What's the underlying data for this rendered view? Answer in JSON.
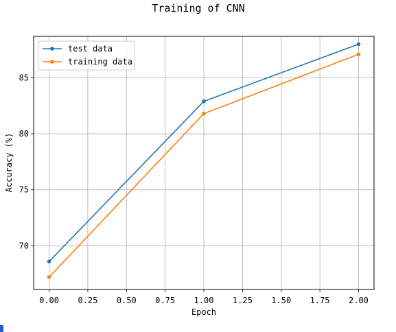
{
  "chart_data": {
    "type": "line",
    "title": "Training of CNN",
    "xlabel": "Epoch",
    "ylabel": "Accuracy (%)",
    "xlim": [
      -0.1,
      2.1
    ],
    "ylim": [
      66.1,
      88.7
    ],
    "x": [
      0,
      1,
      2
    ],
    "xticks": [
      "0.00",
      "0.25",
      "0.50",
      "0.75",
      "1.00",
      "1.25",
      "1.50",
      "1.75",
      "2.00"
    ],
    "xtick_values": [
      0,
      0.25,
      0.5,
      0.75,
      1.0,
      1.25,
      1.5,
      1.75,
      2.0
    ],
    "yticks": [
      "70",
      "75",
      "80",
      "85"
    ],
    "ytick_values": [
      70,
      75,
      80,
      85
    ],
    "grid": true,
    "legend_position": "top-left",
    "series": [
      {
        "name": "test data",
        "values": [
          68.6,
          82.9,
          88.0
        ],
        "color": "#1f77b4"
      },
      {
        "name": "training data",
        "values": [
          67.2,
          81.8,
          87.1
        ],
        "color": "#ff7f0e"
      }
    ]
  }
}
